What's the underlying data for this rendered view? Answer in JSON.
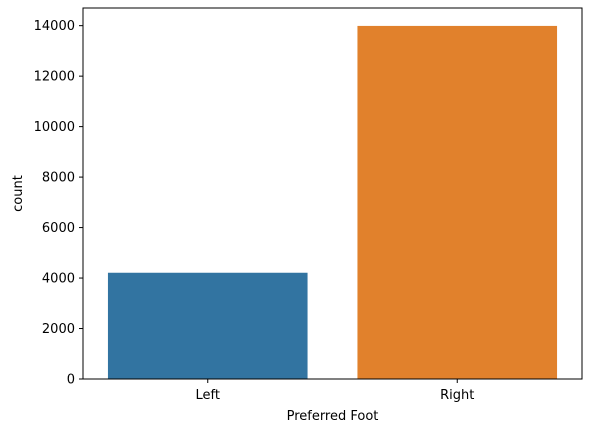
{
  "chart_data": {
    "type": "bar",
    "title": "",
    "xlabel": "Preferred Foot",
    "ylabel": "count",
    "categories": [
      "Left",
      "Right"
    ],
    "values": [
      4210,
      13990
    ],
    "colors": [
      "#3274a1",
      "#e1812c"
    ],
    "ylim": [
      0,
      14700
    ],
    "yticks": [
      0,
      2000,
      4000,
      6000,
      8000,
      10000,
      12000,
      14000
    ],
    "grid": false,
    "legend": "none"
  }
}
